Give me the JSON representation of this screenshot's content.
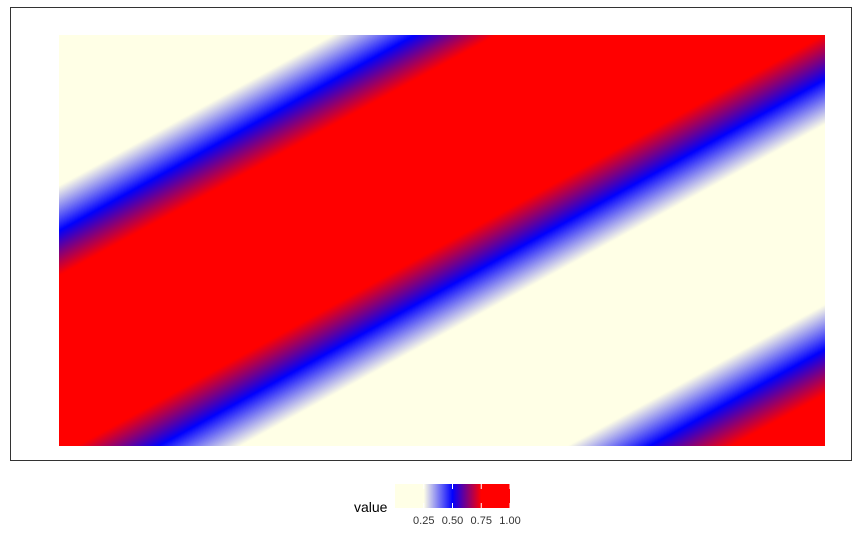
{
  "chart_data": {
    "type": "heatmap",
    "title": "",
    "xlabel": "",
    "ylabel": "",
    "grid": false,
    "legend_placement": "bottom",
    "fill_function": "value = (sin(2*pi*(x + 1.5*y)/L) + 1)/2, diagonal bands rising to the right",
    "band_orientation": "diagonal, rising to the right",
    "value_range": [
      0,
      1
    ],
    "colorbar": {
      "title": "value",
      "ticks": [
        0.25,
        0.5,
        0.75,
        1.0
      ],
      "tick_labels": [
        "0.25",
        "0.50",
        "0.75",
        "1.00"
      ],
      "limits": [
        0,
        1
      ],
      "colors": [
        {
          "stop": 0.0,
          "color": "#FFFFE6"
        },
        {
          "stop": 0.25,
          "color": "#FFFFE6"
        },
        {
          "stop": 0.5,
          "color": "#0000FF"
        },
        {
          "stop": 0.75,
          "color": "#FF0000"
        },
        {
          "stop": 1.0,
          "color": "#FF0000"
        }
      ]
    }
  }
}
